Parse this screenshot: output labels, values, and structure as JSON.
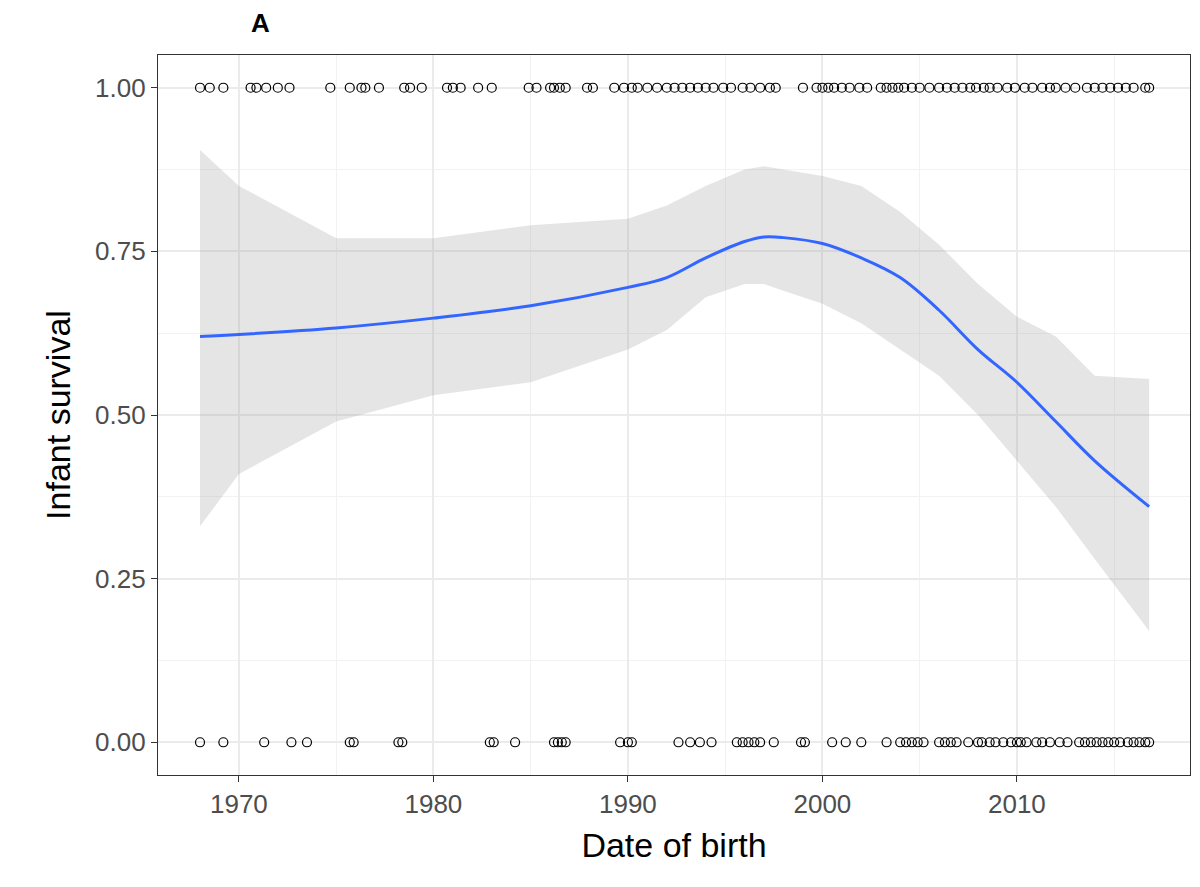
{
  "chart_data": {
    "type": "scatter",
    "title": "A",
    "x_label": "Date of birth",
    "y_label": "Infant survival",
    "xlim": [
      1965.84,
      2018.9
    ],
    "ylim": [
      -0.05,
      1.05
    ],
    "xticks": [
      1970,
      1980,
      1990,
      2000,
      2010
    ],
    "yticks": [
      {
        "value": 0,
        "label": "0.00"
      },
      {
        "value": 0.25,
        "label": "0.25"
      },
      {
        "value": 0.5,
        "label": "0.50"
      },
      {
        "value": 0.75,
        "label": "0.75"
      },
      {
        "value": 1,
        "label": "1.00"
      }
    ],
    "grid": true,
    "series": [
      {
        "type": "scatter",
        "marker": "open circle",
        "color": "#000000",
        "x": [
          1968,
          1968.5,
          1969.2,
          1970.6,
          1970.9,
          1971.4,
          1972,
          1972.6,
          1974.7,
          1975.7,
          1976.3,
          1976.5,
          1977.2,
          1978.5,
          1978.8,
          1979.4,
          1980.7,
          1981,
          1981.4,
          1982.3,
          1983,
          1984.9,
          1985.3,
          1986,
          1986.2,
          1986.5,
          1986.8,
          1987.9,
          1988.2,
          1989.3,
          1989.8,
          1990.2,
          1990.5,
          1991,
          1991.5,
          1992,
          1992.4,
          1992.8,
          1993.2,
          1993.6,
          1994,
          1994.4,
          1994.9,
          1995.3,
          1995.9,
          1996.3,
          1996.8,
          1997.3,
          1997.6,
          1999,
          1999.7,
          2000,
          2000.3,
          2000.6,
          2001,
          2001.4,
          2001.9,
          2002.3,
          2003,
          2003.3,
          2003.6,
          2003.9,
          2004.2,
          2004.6,
          2005,
          2005.5,
          2006,
          2006.4,
          2006.8,
          2007.2,
          2007.6,
          2007.9,
          2008.3,
          2008.6,
          2009,
          2009.5,
          2009.9,
          2010.4,
          2010.8,
          2011.3,
          2011.7,
          2012,
          2012.5,
          2013,
          2013.6,
          2014,
          2014.4,
          2014.8,
          2015.2,
          2015.6,
          2016,
          2016.6,
          2016.8,
          1968,
          1969.2,
          1971.3,
          1972.7,
          1973.5,
          1975.7,
          1975.9,
          1978.2,
          1978.4,
          1982.9,
          1983.1,
          1984.2,
          1986.2,
          1986.4,
          1986.6,
          1986.8,
          1989.6,
          1990,
          1990.2,
          1992.6,
          1993.2,
          1993.7,
          1994.3,
          1995.6,
          1995.9,
          1996.2,
          1996.5,
          1996.8,
          1997.5,
          1998.9,
          1999.1,
          2000.5,
          2001.2,
          2002,
          2003.3,
          2004,
          2004.3,
          2004.6,
          2004.9,
          2005.2,
          2006,
          2006.3,
          2006.6,
          2006.9,
          2007.5,
          2008,
          2008.2,
          2008.6,
          2008.9,
          2009.3,
          2009.7,
          2010,
          2010.2,
          2010.5,
          2011,
          2011.3,
          2011.7,
          2012.2,
          2012.6,
          2013.2,
          2013.5,
          2013.8,
          2014.1,
          2014.4,
          2014.7,
          2015,
          2015.3,
          2015.7,
          2016,
          2016.3,
          2016.6,
          2016.8
        ],
        "values": [
          1,
          1,
          1,
          1,
          1,
          1,
          1,
          1,
          1,
          1,
          1,
          1,
          1,
          1,
          1,
          1,
          1,
          1,
          1,
          1,
          1,
          1,
          1,
          1,
          1,
          1,
          1,
          1,
          1,
          1,
          1,
          1,
          1,
          1,
          1,
          1,
          1,
          1,
          1,
          1,
          1,
          1,
          1,
          1,
          1,
          1,
          1,
          1,
          1,
          1,
          1,
          1,
          1,
          1,
          1,
          1,
          1,
          1,
          1,
          1,
          1,
          1,
          1,
          1,
          1,
          1,
          1,
          1,
          1,
          1,
          1,
          1,
          1,
          1,
          1,
          1,
          1,
          1,
          1,
          1,
          1,
          1,
          1,
          1,
          1,
          1,
          1,
          1,
          1,
          1,
          1,
          1,
          1,
          0,
          0,
          0,
          0,
          0,
          0,
          0,
          0,
          0,
          0,
          0,
          0,
          0,
          0,
          0,
          0,
          0,
          0,
          0,
          0,
          0,
          0,
          0,
          0,
          0,
          0,
          0,
          0,
          0,
          0,
          0,
          0,
          0,
          0,
          0,
          0,
          0,
          0,
          0,
          0,
          0,
          0,
          0,
          0,
          0,
          0,
          0,
          0,
          0,
          0,
          0,
          0,
          0,
          0,
          0,
          0,
          0,
          0,
          0,
          0,
          0,
          0,
          0,
          0,
          0,
          0,
          0,
          0,
          0,
          0,
          0,
          0
        ]
      },
      {
        "type": "line",
        "line_style": "solid",
        "color": "#3366ff",
        "x": [
          1968,
          1970,
          1975,
          1980,
          1985,
          1990,
          1992,
          1994,
          1996,
          1997,
          1998,
          2000,
          2002,
          2004,
          2006,
          2008,
          2010,
          2012,
          2014,
          2016.8
        ],
        "values": [
          0.62,
          0.623,
          0.633,
          0.648,
          0.667,
          0.695,
          0.71,
          0.74,
          0.765,
          0.772,
          0.771,
          0.762,
          0.74,
          0.71,
          0.66,
          0.6,
          0.55,
          0.49,
          0.43,
          0.36
        ],
        "lower": [
          0.33,
          0.41,
          0.49,
          0.53,
          0.55,
          0.6,
          0.63,
          0.68,
          0.7,
          0.7,
          0.69,
          0.67,
          0.64,
          0.6,
          0.56,
          0.5,
          0.43,
          0.36,
          0.28,
          0.17
        ],
        "upper": [
          0.905,
          0.85,
          0.77,
          0.77,
          0.79,
          0.8,
          0.82,
          0.85,
          0.875,
          0.88,
          0.875,
          0.865,
          0.85,
          0.81,
          0.76,
          0.7,
          0.65,
          0.62,
          0.56,
          0.555
        ]
      }
    ]
  }
}
